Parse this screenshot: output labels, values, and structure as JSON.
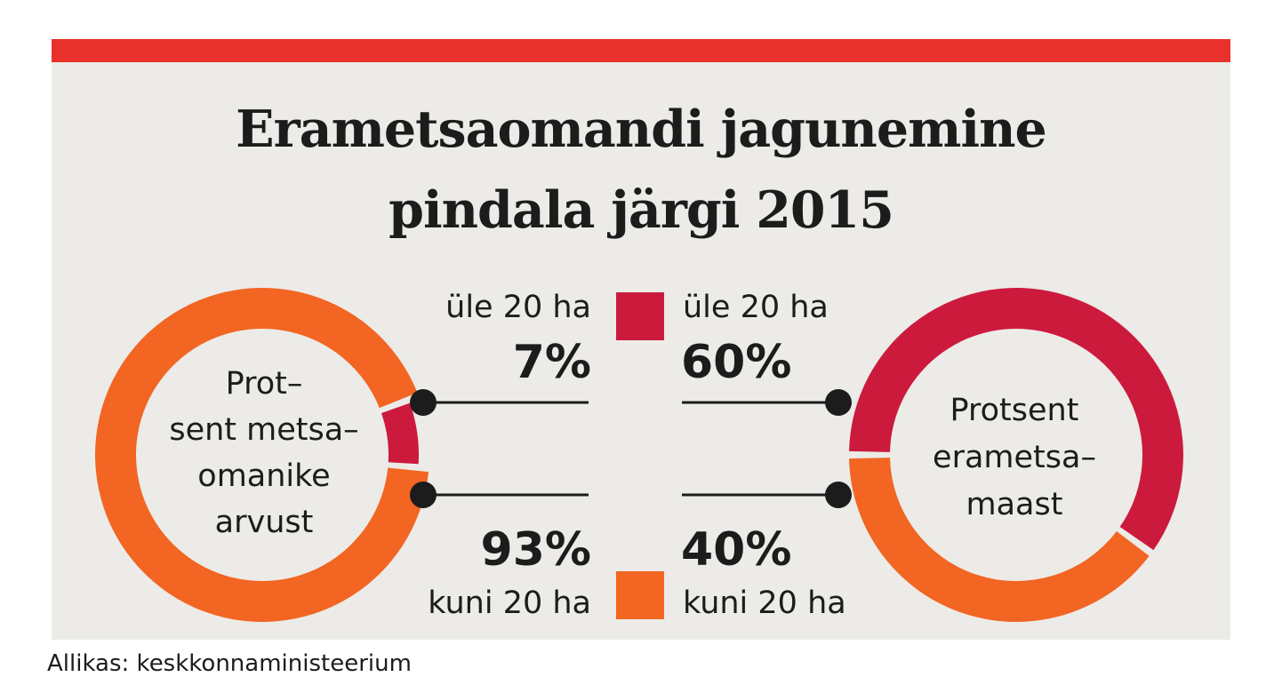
{
  "title_line1": "Erametsaomandi jagunemine",
  "title_line2": "pindala järgi 2015",
  "source": "Allikas: keskkonnaministeerium",
  "colors": {
    "over20": "#cc1a3d",
    "upto20": "#f26522",
    "accent": "#e8312a",
    "background": "#ecebe7"
  },
  "legend": {
    "over20_label": "üle 20 ha",
    "upto20_label": "kuni 20 ha"
  },
  "chart_data": [
    {
      "type": "pie",
      "center_lines": [
        "Prot–",
        "sent metsa–",
        "omanike",
        "arvust"
      ],
      "slices": [
        {
          "label": "üle 20 ha",
          "value": 7,
          "value_label": "7%"
        },
        {
          "label": "kuni 20 ha",
          "value": 93,
          "value_label": "93%"
        }
      ]
    },
    {
      "type": "pie",
      "center_lines": [
        "Protsent",
        "erametsa–",
        "maast"
      ],
      "slices": [
        {
          "label": "üle 20 ha",
          "value": 60,
          "value_label": "60%"
        },
        {
          "label": "kuni 20 ha",
          "value": 40,
          "value_label": "40%"
        }
      ]
    }
  ]
}
